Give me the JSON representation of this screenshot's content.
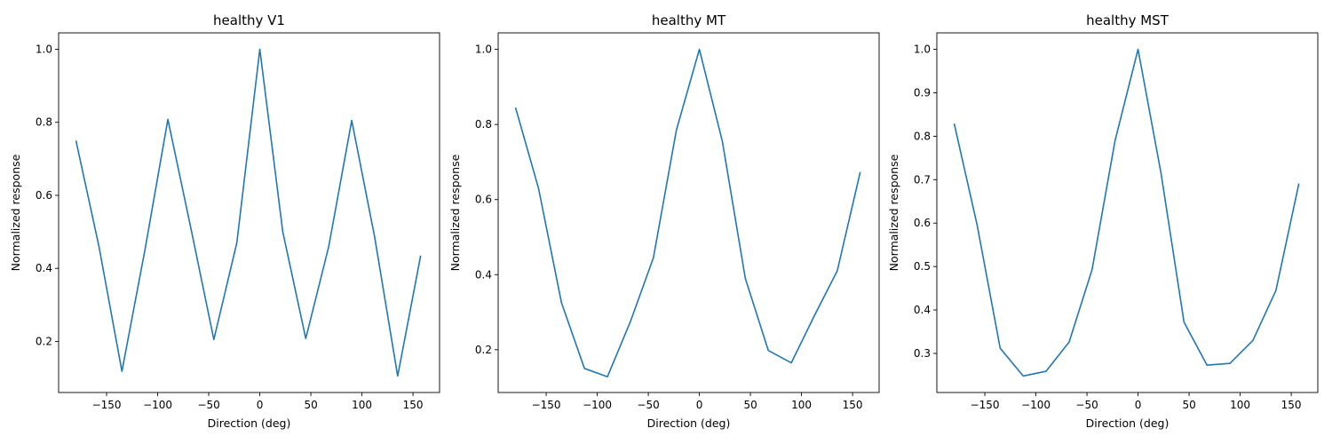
{
  "chart_data": [
    {
      "type": "line",
      "title": "healthy V1",
      "xlabel": "Direction (deg)",
      "ylabel": "Normalized response",
      "xlim": [
        -197,
        176
      ],
      "ylim": [
        0.06,
        1.045
      ],
      "xticks": [
        -150,
        -100,
        -50,
        0,
        50,
        100,
        150
      ],
      "yticks": [
        0.2,
        0.4,
        0.6,
        0.8,
        1.0
      ],
      "ytick_labels": [
        "0.2",
        "0.4",
        "0.6",
        "0.8",
        "1.0"
      ],
      "color": "#1f77b4",
      "x": [
        -180,
        -157.5,
        -135,
        -112.5,
        -90,
        -67.5,
        -45,
        -22.5,
        0,
        22.5,
        45,
        67.5,
        90,
        112.5,
        135,
        157.5
      ],
      "y": [
        0.75,
        0.46,
        0.118,
        0.45,
        0.808,
        0.51,
        0.205,
        0.47,
        1.0,
        0.5,
        0.208,
        0.46,
        0.805,
        0.485,
        0.105,
        0.435
      ]
    },
    {
      "type": "line",
      "title": "healthy MT",
      "xlabel": "Direction (deg)",
      "ylabel": "Normalized response",
      "xlim": [
        -197,
        176
      ],
      "ylim": [
        0.086,
        1.044
      ],
      "xticks": [
        -150,
        -100,
        -50,
        0,
        50,
        100,
        150
      ],
      "yticks": [
        0.2,
        0.4,
        0.6,
        0.8,
        1.0
      ],
      "ytick_labels": [
        "0.2",
        "0.4",
        "0.6",
        "0.8",
        "1.0"
      ],
      "color": "#1f77b4",
      "x": [
        -180,
        -157.5,
        -135,
        -112.5,
        -90,
        -67.5,
        -45,
        -22.5,
        0,
        22.5,
        45,
        67.5,
        90,
        112.5,
        135,
        157.5
      ],
      "y": [
        0.845,
        0.63,
        0.325,
        0.15,
        0.128,
        0.275,
        0.445,
        0.785,
        1.0,
        0.755,
        0.39,
        0.198,
        0.165,
        0.29,
        0.41,
        0.673
      ]
    },
    {
      "type": "line",
      "title": "healthy MST",
      "xlabel": "Direction (deg)",
      "ylabel": "Normalized response",
      "xlim": [
        -197,
        176
      ],
      "ylim": [
        0.21,
        1.038
      ],
      "xticks": [
        -150,
        -100,
        -50,
        0,
        50,
        100,
        150
      ],
      "yticks": [
        0.3,
        0.4,
        0.5,
        0.6,
        0.7,
        0.8,
        0.9,
        1.0
      ],
      "ytick_labels": [
        "0.3",
        "0.4",
        "0.5",
        "0.6",
        "0.7",
        "0.8",
        "0.9",
        "1.0"
      ],
      "color": "#1f77b4",
      "x": [
        -180,
        -157.5,
        -135,
        -112.5,
        -90,
        -67.5,
        -45,
        -22.5,
        0,
        22.5,
        45,
        67.5,
        90,
        112.5,
        135,
        157.5
      ],
      "y": [
        0.829,
        0.595,
        0.312,
        0.248,
        0.259,
        0.326,
        0.493,
        0.79,
        1.0,
        0.715,
        0.372,
        0.273,
        0.277,
        0.33,
        0.445,
        0.691
      ]
    }
  ]
}
